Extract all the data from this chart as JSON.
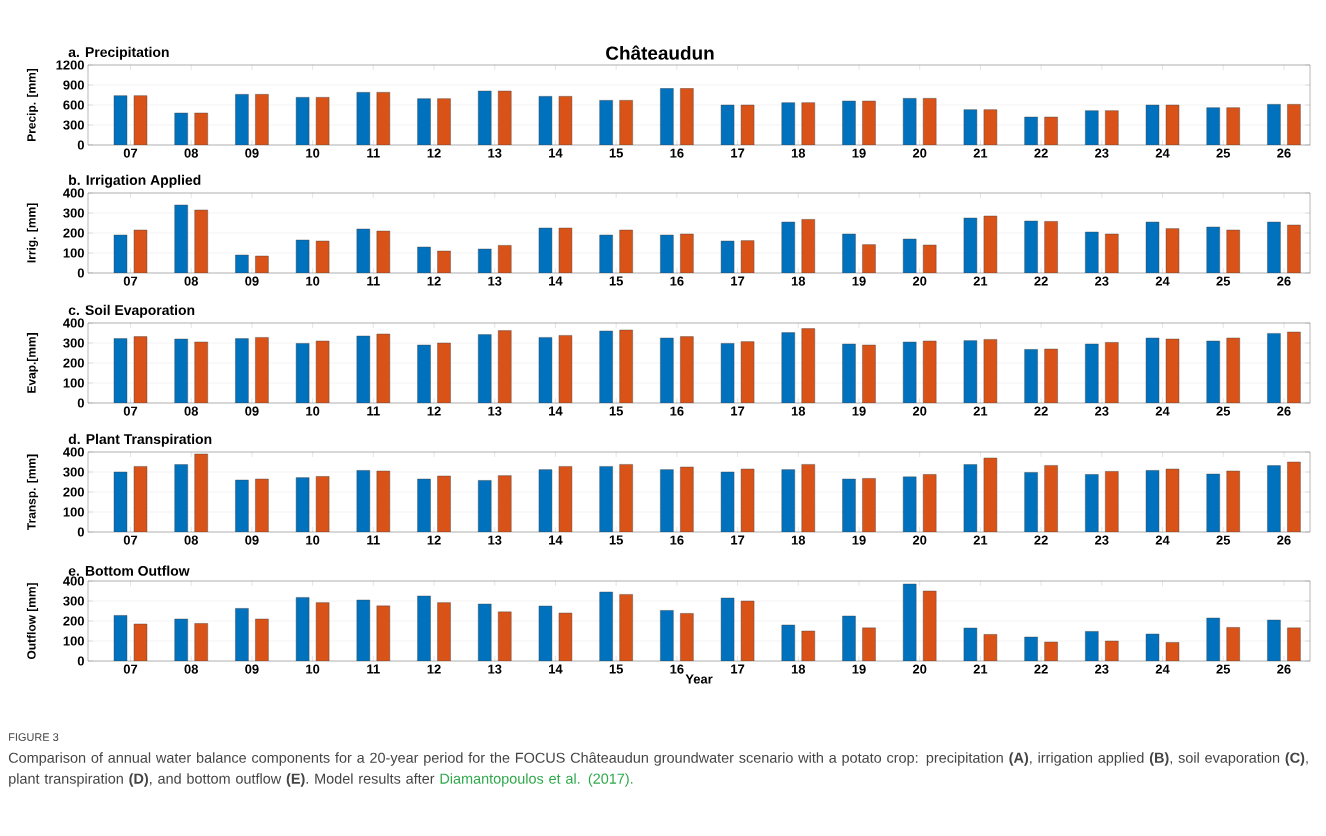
{
  "chart_data": [
    {
      "type": "bar",
      "title": "a. Precipitation",
      "subtitle": "Châteaudun",
      "ylabel": "Precip. [mm]",
      "categories": [
        "07",
        "08",
        "09",
        "10",
        "11",
        "12",
        "13",
        "14",
        "15",
        "16",
        "17",
        "18",
        "19",
        "20",
        "21",
        "22",
        "23",
        "24",
        "25",
        "26"
      ],
      "series": [
        {
          "color": "#0072bd",
          "values": [
            740,
            480,
            760,
            715,
            790,
            695,
            810,
            730,
            670,
            850,
            600,
            635,
            660,
            700,
            530,
            420,
            515,
            600,
            560,
            610
          ]
        },
        {
          "color": "#d95319",
          "values": [
            740,
            480,
            760,
            715,
            790,
            695,
            810,
            730,
            670,
            850,
            600,
            635,
            660,
            700,
            530,
            420,
            515,
            600,
            560,
            610
          ]
        }
      ],
      "ylim": [
        0,
        1200
      ],
      "yticks": [
        0,
        300,
        600,
        900,
        1200
      ],
      "grid": "y"
    },
    {
      "type": "bar",
      "title": "b. Irrigation Applied",
      "ylabel": "Irrig. [mm]",
      "categories": [
        "07",
        "08",
        "09",
        "10",
        "11",
        "12",
        "13",
        "14",
        "15",
        "16",
        "17",
        "18",
        "19",
        "20",
        "21",
        "22",
        "23",
        "24",
        "25",
        "26"
      ],
      "series": [
        {
          "color": "#0072bd",
          "values": [
            190,
            340,
            90,
            165,
            220,
            130,
            120,
            225,
            190,
            190,
            160,
            255,
            195,
            170,
            275,
            260,
            205,
            255,
            230,
            255
          ]
        },
        {
          "color": "#d95319",
          "values": [
            215,
            315,
            85,
            160,
            210,
            110,
            138,
            225,
            215,
            195,
            162,
            268,
            142,
            140,
            285,
            258,
            195,
            222,
            215,
            240
          ]
        }
      ],
      "ylim": [
        0,
        400
      ],
      "yticks": [
        0,
        100,
        200,
        300,
        400
      ],
      "grid": "y"
    },
    {
      "type": "bar",
      "title": "c. Soil Evaporation",
      "ylabel": "Evap.[mm]",
      "categories": [
        "07",
        "08",
        "09",
        "10",
        "11",
        "12",
        "13",
        "14",
        "15",
        "16",
        "17",
        "18",
        "19",
        "20",
        "21",
        "22",
        "23",
        "24",
        "25",
        "26"
      ],
      "series": [
        {
          "color": "#0072bd",
          "values": [
            322,
            320,
            322,
            298,
            335,
            290,
            342,
            328,
            360,
            325,
            298,
            352,
            295,
            305,
            312,
            268,
            295,
            325,
            310,
            348
          ]
        },
        {
          "color": "#d95319",
          "values": [
            332,
            305,
            328,
            310,
            345,
            300,
            362,
            338,
            365,
            332,
            307,
            372,
            290,
            310,
            318,
            270,
            303,
            320,
            325,
            355
          ]
        }
      ],
      "ylim": [
        0,
        400
      ],
      "yticks": [
        0,
        100,
        200,
        300,
        400
      ],
      "grid": "y"
    },
    {
      "type": "bar",
      "title": "d. Plant Transpiration",
      "ylabel": "Transp. [mm]",
      "categories": [
        "07",
        "08",
        "09",
        "10",
        "11",
        "12",
        "13",
        "14",
        "15",
        "16",
        "17",
        "18",
        "19",
        "20",
        "21",
        "22",
        "23",
        "24",
        "25",
        "26"
      ],
      "series": [
        {
          "color": "#0072bd",
          "values": [
            300,
            338,
            260,
            272,
            308,
            265,
            258,
            312,
            328,
            312,
            300,
            312,
            265,
            276,
            338,
            298,
            288,
            308,
            290,
            332
          ]
        },
        {
          "color": "#d95319",
          "values": [
            328,
            390,
            265,
            278,
            305,
            280,
            282,
            328,
            338,
            325,
            315,
            338,
            268,
            288,
            370,
            333,
            303,
            315,
            305,
            350
          ]
        }
      ],
      "ylim": [
        0,
        400
      ],
      "yticks": [
        0,
        100,
        200,
        300,
        400
      ],
      "grid": "y"
    },
    {
      "type": "bar",
      "title": "e. Bottom Outflow",
      "ylabel": "Outflow [mm]",
      "xlabel": "Year",
      "categories": [
        "07",
        "08",
        "09",
        "10",
        "11",
        "12",
        "13",
        "14",
        "15",
        "16",
        "17",
        "18",
        "19",
        "20",
        "21",
        "22",
        "23",
        "24",
        "25",
        "26"
      ],
      "series": [
        {
          "color": "#0072bd",
          "values": [
            228,
            210,
            263,
            318,
            305,
            325,
            285,
            275,
            345,
            253,
            315,
            180,
            225,
            385,
            165,
            120,
            148,
            135,
            215,
            205
          ]
        },
        {
          "color": "#d95319",
          "values": [
            185,
            188,
            210,
            292,
            276,
            292,
            246,
            240,
            333,
            238,
            300,
            150,
            166,
            350,
            133,
            95,
            100,
            93,
            168,
            166
          ]
        }
      ],
      "ylim": [
        0,
        400
      ],
      "yticks": [
        0,
        100,
        200,
        300,
        400
      ],
      "grid": "y",
      "annotations": [
        "FIGURE 3",
        "Comparison of annual water balance components for a 20-year period for the FOCUS Châteaudun groundwater scenario with a potato crop: precipitation **(A)**, irrigation applied **(B)**, soil evaporation **(C)**, plant transpiration **(D)**, and bottom outflow **(E)**.",
        "Model results after",
        "Diamantopoulos et al. (2017)."
      ]
    }
  ]
}
